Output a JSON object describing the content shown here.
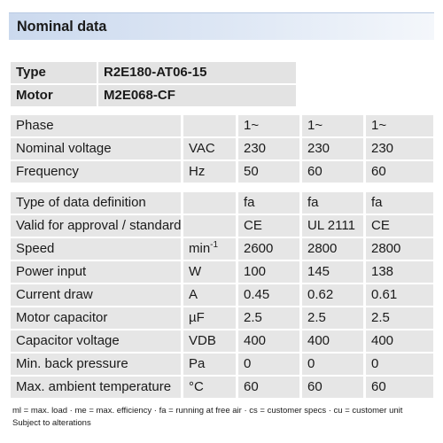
{
  "title": "Nominal data",
  "identity": [
    {
      "key": "Type",
      "value": "R2E180-AT06-15"
    },
    {
      "key": "Motor",
      "value": "M2E068-CF"
    }
  ],
  "group1": [
    {
      "label": "Phase",
      "unit": "",
      "values": [
        "1~",
        "1~",
        "1~"
      ]
    },
    {
      "label": "Nominal voltage",
      "unit": "VAC",
      "values": [
        "230",
        "230",
        "230"
      ]
    },
    {
      "label": "Frequency",
      "unit": "Hz",
      "values": [
        "50",
        "60",
        "60"
      ]
    }
  ],
  "group2": [
    {
      "label": "Type of data definition",
      "unit": "",
      "values": [
        "fa",
        "fa",
        "fa"
      ]
    },
    {
      "label": "Valid for approval / standard",
      "unit": "",
      "values": [
        "CE",
        "UL 2111",
        "CE"
      ]
    },
    {
      "label": "Speed",
      "unit": "min",
      "unit_sup": "-1",
      "values": [
        "2600",
        "2800",
        "2800"
      ]
    },
    {
      "label": "Power input",
      "unit": "W",
      "values": [
        "100",
        "145",
        "138"
      ]
    },
    {
      "label": "Current draw",
      "unit": "A",
      "values": [
        "0.45",
        "0.62",
        "0.61"
      ]
    },
    {
      "label": "Motor capacitor",
      "unit": "µF",
      "values": [
        "2.5",
        "2.5",
        "2.5"
      ]
    },
    {
      "label": "Capacitor voltage",
      "unit": "VDB",
      "values": [
        "400",
        "400",
        "400"
      ]
    },
    {
      "label": "Min. back pressure",
      "unit": "Pa",
      "values": [
        "0",
        "0",
        "0"
      ]
    },
    {
      "label": "Max. ambient temperature",
      "unit": "°C",
      "values": [
        "60",
        "60",
        "60"
      ]
    }
  ],
  "footnote": "ml = max. load · me = max. efficiency · fa = running at free air · cs = customer specs · cu = customer unit",
  "footnote2": "Subject to alterations"
}
